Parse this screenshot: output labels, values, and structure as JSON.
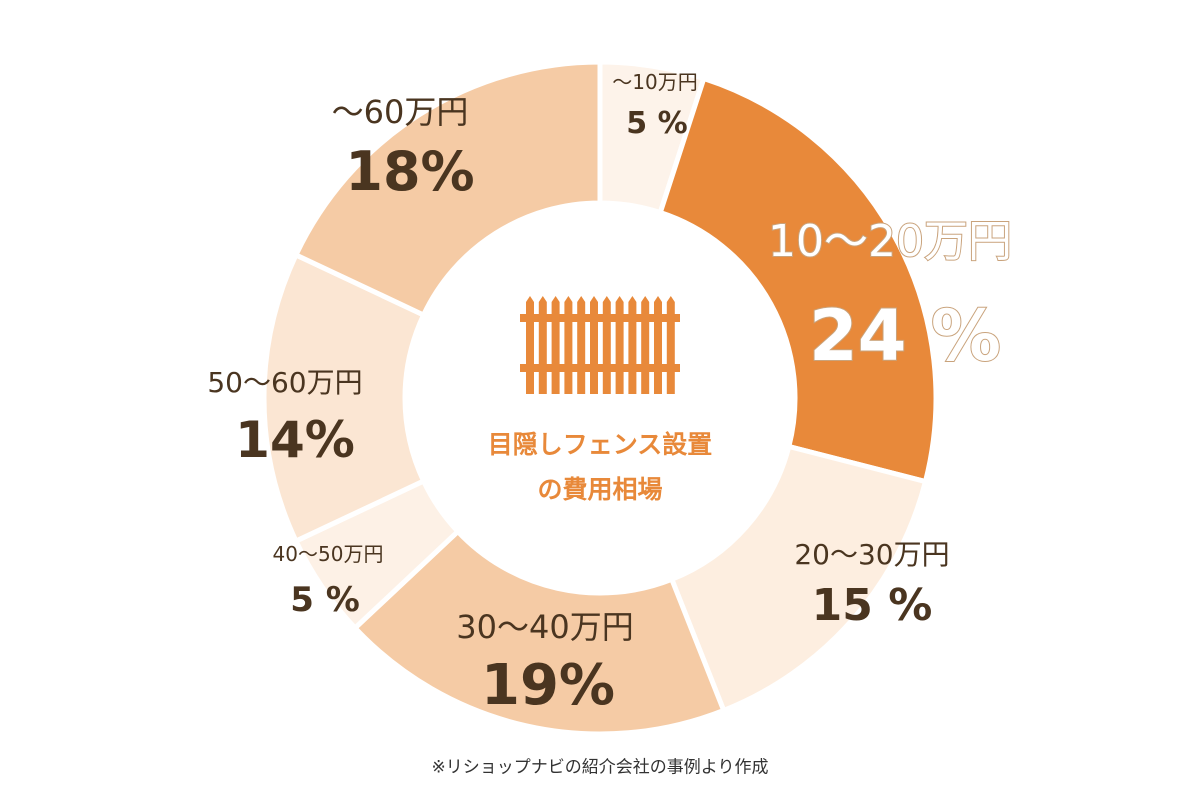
{
  "chart_data": {
    "type": "pie",
    "donut": true,
    "center_title": [
      "目隠しフェンス設置",
      "の費用相場"
    ],
    "center_icon": "fence-icon",
    "categories": [
      "〜10万円",
      "10〜20万円",
      "20〜30万円",
      "30〜40万円",
      "40〜50万円",
      "50〜60万円",
      "〜60万円"
    ],
    "values": [
      5,
      24,
      15,
      19,
      5,
      14,
      18
    ],
    "value_labels": [
      "5 %",
      "24 %",
      "15 %",
      "19%",
      "5 %",
      "14%",
      "18%"
    ],
    "colors": [
      "#fdf3ea",
      "#e8893a",
      "#fdeee0",
      "#f5cba5",
      "#fdf1e6",
      "#fbe6d3",
      "#f5cba5"
    ],
    "start": "top",
    "direction": "clockwise",
    "footnote": "※リショップナビの紹介会社の事例より作成"
  }
}
